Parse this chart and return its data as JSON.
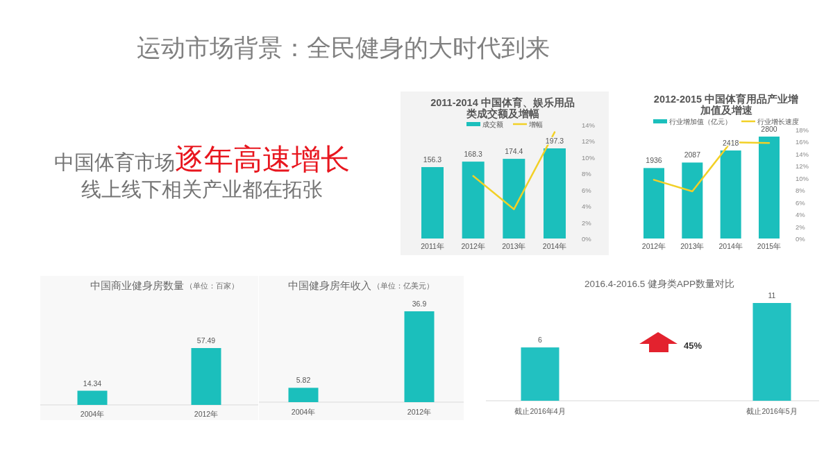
{
  "chart_data": [
    {
      "type": "other",
      "title": "运动市场背景：全民健身的大时代到来",
      "annotations": [
        "中国体育市场",
        "逐年高速增长",
        "线上线下相关产业都在拓张"
      ]
    },
    {
      "type": "bar",
      "title": "2011-2014 中国体育、娱乐用品类成交额及增幅",
      "categories": [
        "2011年",
        "2012年",
        "2013年",
        "2014年"
      ],
      "series": [
        {
          "name": "成交额",
          "color": "#1bbfbc",
          "values": [
            156.3,
            168.3,
            174.4,
            197.3
          ],
          "value_labels": [
            "156.3",
            "168.3",
            "174.4",
            "197.3"
          ]
        },
        {
          "name": "增幅",
          "type": "line",
          "axis": "y2",
          "color": "#f2d026",
          "values": [
            null,
            7.7,
            3.6,
            13.1
          ]
        }
      ],
      "y2lim": [
        0,
        14
      ],
      "y2ticks": [
        {
          "value": 0,
          "label": "0%"
        },
        {
          "value": 2,
          "label": "2%"
        },
        {
          "value": 4,
          "label": "4%"
        },
        {
          "value": 6,
          "label": "6%"
        },
        {
          "value": 8,
          "label": "8%"
        },
        {
          "value": 10,
          "label": "10%"
        },
        {
          "value": 12,
          "label": "12%"
        },
        {
          "value": 14,
          "label": "14%"
        }
      ],
      "legend": "top"
    },
    {
      "type": "bar",
      "title": "2012-2015 中国体育用品产业增加值及增速",
      "categories": [
        "2012年",
        "2013年",
        "2014年",
        "2015年"
      ],
      "series": [
        {
          "name": "行业增加值（亿元）",
          "color": "#1bbfbc",
          "values": [
            1936,
            2087,
            2418,
            2800
          ],
          "value_labels": [
            "1936",
            "2087",
            "2418",
            "2800"
          ]
        },
        {
          "name": "行业增长速度",
          "type": "line",
          "axis": "y2",
          "color": "#f2d026",
          "values": [
            9.7,
            7.8,
            15.9,
            15.8
          ]
        }
      ],
      "y2lim": [
        0,
        18
      ],
      "y2ticks": [
        {
          "value": 0,
          "label": "0%"
        },
        {
          "value": 2,
          "label": "2%"
        },
        {
          "value": 4,
          "label": "4%"
        },
        {
          "value": 6,
          "label": "6%"
        },
        {
          "value": 8,
          "label": "8%"
        },
        {
          "value": 10,
          "label": "10%"
        },
        {
          "value": 12,
          "label": "12%"
        },
        {
          "value": 14,
          "label": "14%"
        },
        {
          "value": 16,
          "label": "16%"
        },
        {
          "value": 18,
          "label": "18%"
        }
      ],
      "legend": "top"
    },
    {
      "type": "bar",
      "title": "中国商业健身房数量",
      "subtitle": "（单位：百家）",
      "categories": [
        "2004年",
        "2012年"
      ],
      "values": [
        14.34,
        57.49
      ],
      "color": "#1bbfbc",
      "data_labels": true
    },
    {
      "type": "bar",
      "title": "中国健身房年收入",
      "subtitle": "（单位：亿美元）",
      "categories": [
        "2004年",
        "2012年"
      ],
      "values": [
        5.82,
        36.9
      ],
      "color": "#1bbfbc",
      "data_labels": true
    },
    {
      "type": "bar",
      "title": "2016.4-2016.5 健身类APP数量对比",
      "categories": [
        "截止2016年4月",
        "截止2016年5月"
      ],
      "values": [
        6,
        11
      ],
      "color": "#22c1c1",
      "data_labels": true,
      "annotations": [
        "45%"
      ]
    }
  ]
}
